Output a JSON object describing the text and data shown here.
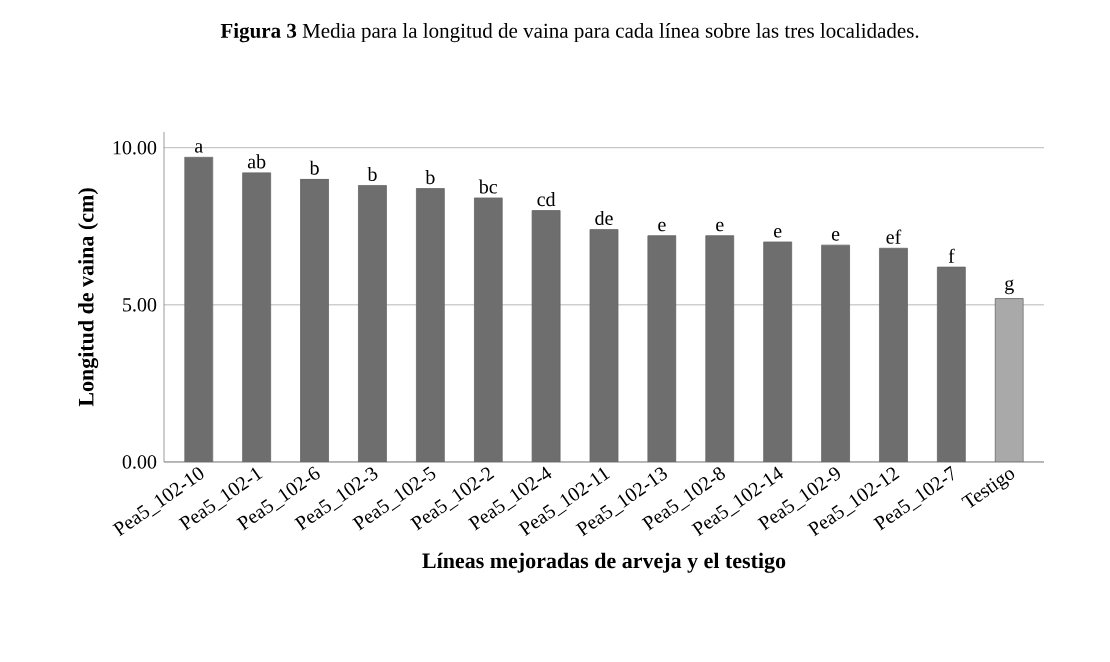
{
  "chart_data": {
    "type": "bar",
    "title": "**Figura 3** Media para la longitud de vaina para cada línea sobre las tres localidades.",
    "xlabel": "Líneas mejoradas de arveja y el testigo",
    "ylabel": "Longitud de vaina (cm)",
    "categories": [
      "Pea5_102-10",
      "Pea5_102-1",
      "Pea5_102-6",
      "Pea5_102-3",
      "Pea5_102-5",
      "Pea5_102-2",
      "Pea5_102-4",
      "Pea5_102-11",
      "Pea5_102-13",
      "Pea5_102-8",
      "Pea5_102-14",
      "Pea5_102-9",
      "Pea5_102-12",
      "Pea5_102-7",
      "Testigo"
    ],
    "values": [
      9.7,
      9.2,
      9.0,
      8.8,
      8.7,
      8.4,
      8.0,
      7.4,
      7.2,
      7.2,
      7.0,
      6.9,
      6.8,
      6.2,
      5.2
    ],
    "colors": [
      "#6e6e6e",
      "#6e6e6e",
      "#6e6e6e",
      "#6e6e6e",
      "#6e6e6e",
      "#6e6e6e",
      "#6e6e6e",
      "#6e6e6e",
      "#6e6e6e",
      "#6e6e6e",
      "#6e6e6e",
      "#6e6e6e",
      "#6e6e6e",
      "#6e6e6e",
      "#a9a9a9"
    ],
    "ylim": [
      0,
      10.5
    ],
    "yticks": [
      {
        "value": 0,
        "label": "0.00"
      },
      {
        "value": 5,
        "label": "5.00"
      },
      {
        "value": 10,
        "label": "10.00"
      }
    ],
    "grid": "y",
    "annotations": [
      {
        "text": "a",
        "x": "Pea5_102-10",
        "y": 9.7
      },
      {
        "text": "ab",
        "x": "Pea5_102-1",
        "y": 9.2
      },
      {
        "text": "b",
        "x": "Pea5_102-6",
        "y": 9.0
      },
      {
        "text": "b",
        "x": "Pea5_102-3",
        "y": 8.8
      },
      {
        "text": "b",
        "x": "Pea5_102-5",
        "y": 8.7
      },
      {
        "text": "bc",
        "x": "Pea5_102-2",
        "y": 8.4
      },
      {
        "text": "cd",
        "x": "Pea5_102-4",
        "y": 8.0
      },
      {
        "text": "de",
        "x": "Pea5_102-11",
        "y": 7.4
      },
      {
        "text": "e",
        "x": "Pea5_102-13",
        "y": 7.2
      },
      {
        "text": "e",
        "x": "Pea5_102-8",
        "y": 7.2
      },
      {
        "text": "e",
        "x": "Pea5_102-14",
        "y": 7.0
      },
      {
        "text": "e",
        "x": "Pea5_102-9",
        "y": 6.9
      },
      {
        "text": "ef",
        "x": "Pea5_102-12",
        "y": 6.8
      },
      {
        "text": "f",
        "x": "Pea5_102-7",
        "y": 6.2
      },
      {
        "text": "g",
        "x": "Testigo",
        "y": 5.2
      }
    ]
  }
}
